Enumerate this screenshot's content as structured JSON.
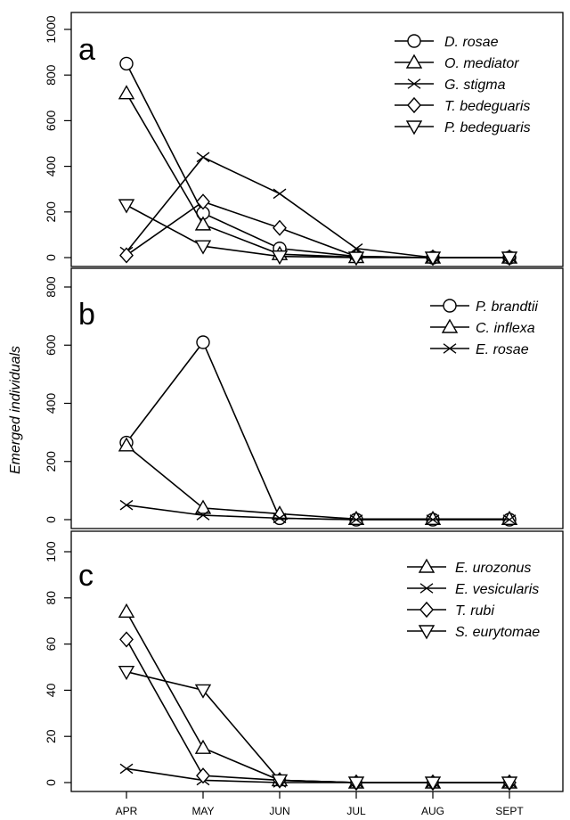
{
  "ylabel": "Emerged individuals",
  "chart_data": [
    {
      "type": "line",
      "panel": "a",
      "categories": [
        "APR",
        "MAY",
        "JUN",
        "JUL",
        "AUG",
        "SEPT"
      ],
      "ylim": [
        0,
        1000
      ],
      "yticks": [
        0,
        200,
        400,
        600,
        800,
        1000
      ],
      "legend_position": "top-right",
      "series": [
        {
          "name": "D. rosae",
          "marker": "circle",
          "values": [
            850,
            195,
            40,
            5,
            0,
            0
          ]
        },
        {
          "name": "O. mediator",
          "marker": "triangle-up",
          "values": [
            720,
            145,
            15,
            2,
            0,
            0
          ]
        },
        {
          "name": "G. stigma",
          "marker": "x",
          "values": [
            25,
            440,
            280,
            40,
            0,
            0
          ]
        },
        {
          "name": "T. bedeguaris",
          "marker": "diamond",
          "values": [
            10,
            245,
            130,
            5,
            0,
            0
          ]
        },
        {
          "name": "P. bedeguaris",
          "marker": "triangle-down",
          "values": [
            230,
            50,
            5,
            0,
            0,
            0
          ]
        }
      ]
    },
    {
      "type": "line",
      "panel": "b",
      "categories": [
        "APR",
        "MAY",
        "JUN",
        "JUL",
        "AUG",
        "SEPT"
      ],
      "ylim": [
        0,
        800
      ],
      "yticks": [
        0,
        200,
        400,
        600,
        800
      ],
      "legend_position": "top-right",
      "series": [
        {
          "name": "P. brandtii",
          "marker": "circle",
          "values": [
            265,
            610,
            5,
            0,
            0,
            0
          ]
        },
        {
          "name": "C. inflexa",
          "marker": "triangle-up",
          "values": [
            255,
            40,
            20,
            2,
            2,
            2
          ]
        },
        {
          "name": "E. rosae",
          "marker": "x",
          "values": [
            50,
            15,
            5,
            0,
            0,
            0
          ]
        }
      ]
    },
    {
      "type": "line",
      "panel": "c",
      "categories": [
        "APR",
        "MAY",
        "JUN",
        "JUL",
        "AUG",
        "SEPT"
      ],
      "ylim": [
        0,
        100
      ],
      "yticks": [
        0,
        20,
        40,
        60,
        80,
        100
      ],
      "legend_position": "top-right",
      "series": [
        {
          "name": "E. urozonus",
          "marker": "triangle-up",
          "values": [
            74,
            15,
            1,
            0,
            0,
            0
          ]
        },
        {
          "name": "E. vesicularis",
          "marker": "x",
          "values": [
            6,
            1,
            0,
            0,
            0,
            0
          ]
        },
        {
          "name": "T. rubi",
          "marker": "diamond",
          "values": [
            62,
            3,
            1,
            0,
            0,
            0
          ]
        },
        {
          "name": "S. eurytomae",
          "marker": "triangle-down",
          "values": [
            48,
            40,
            1,
            0,
            0,
            0
          ]
        }
      ]
    }
  ]
}
